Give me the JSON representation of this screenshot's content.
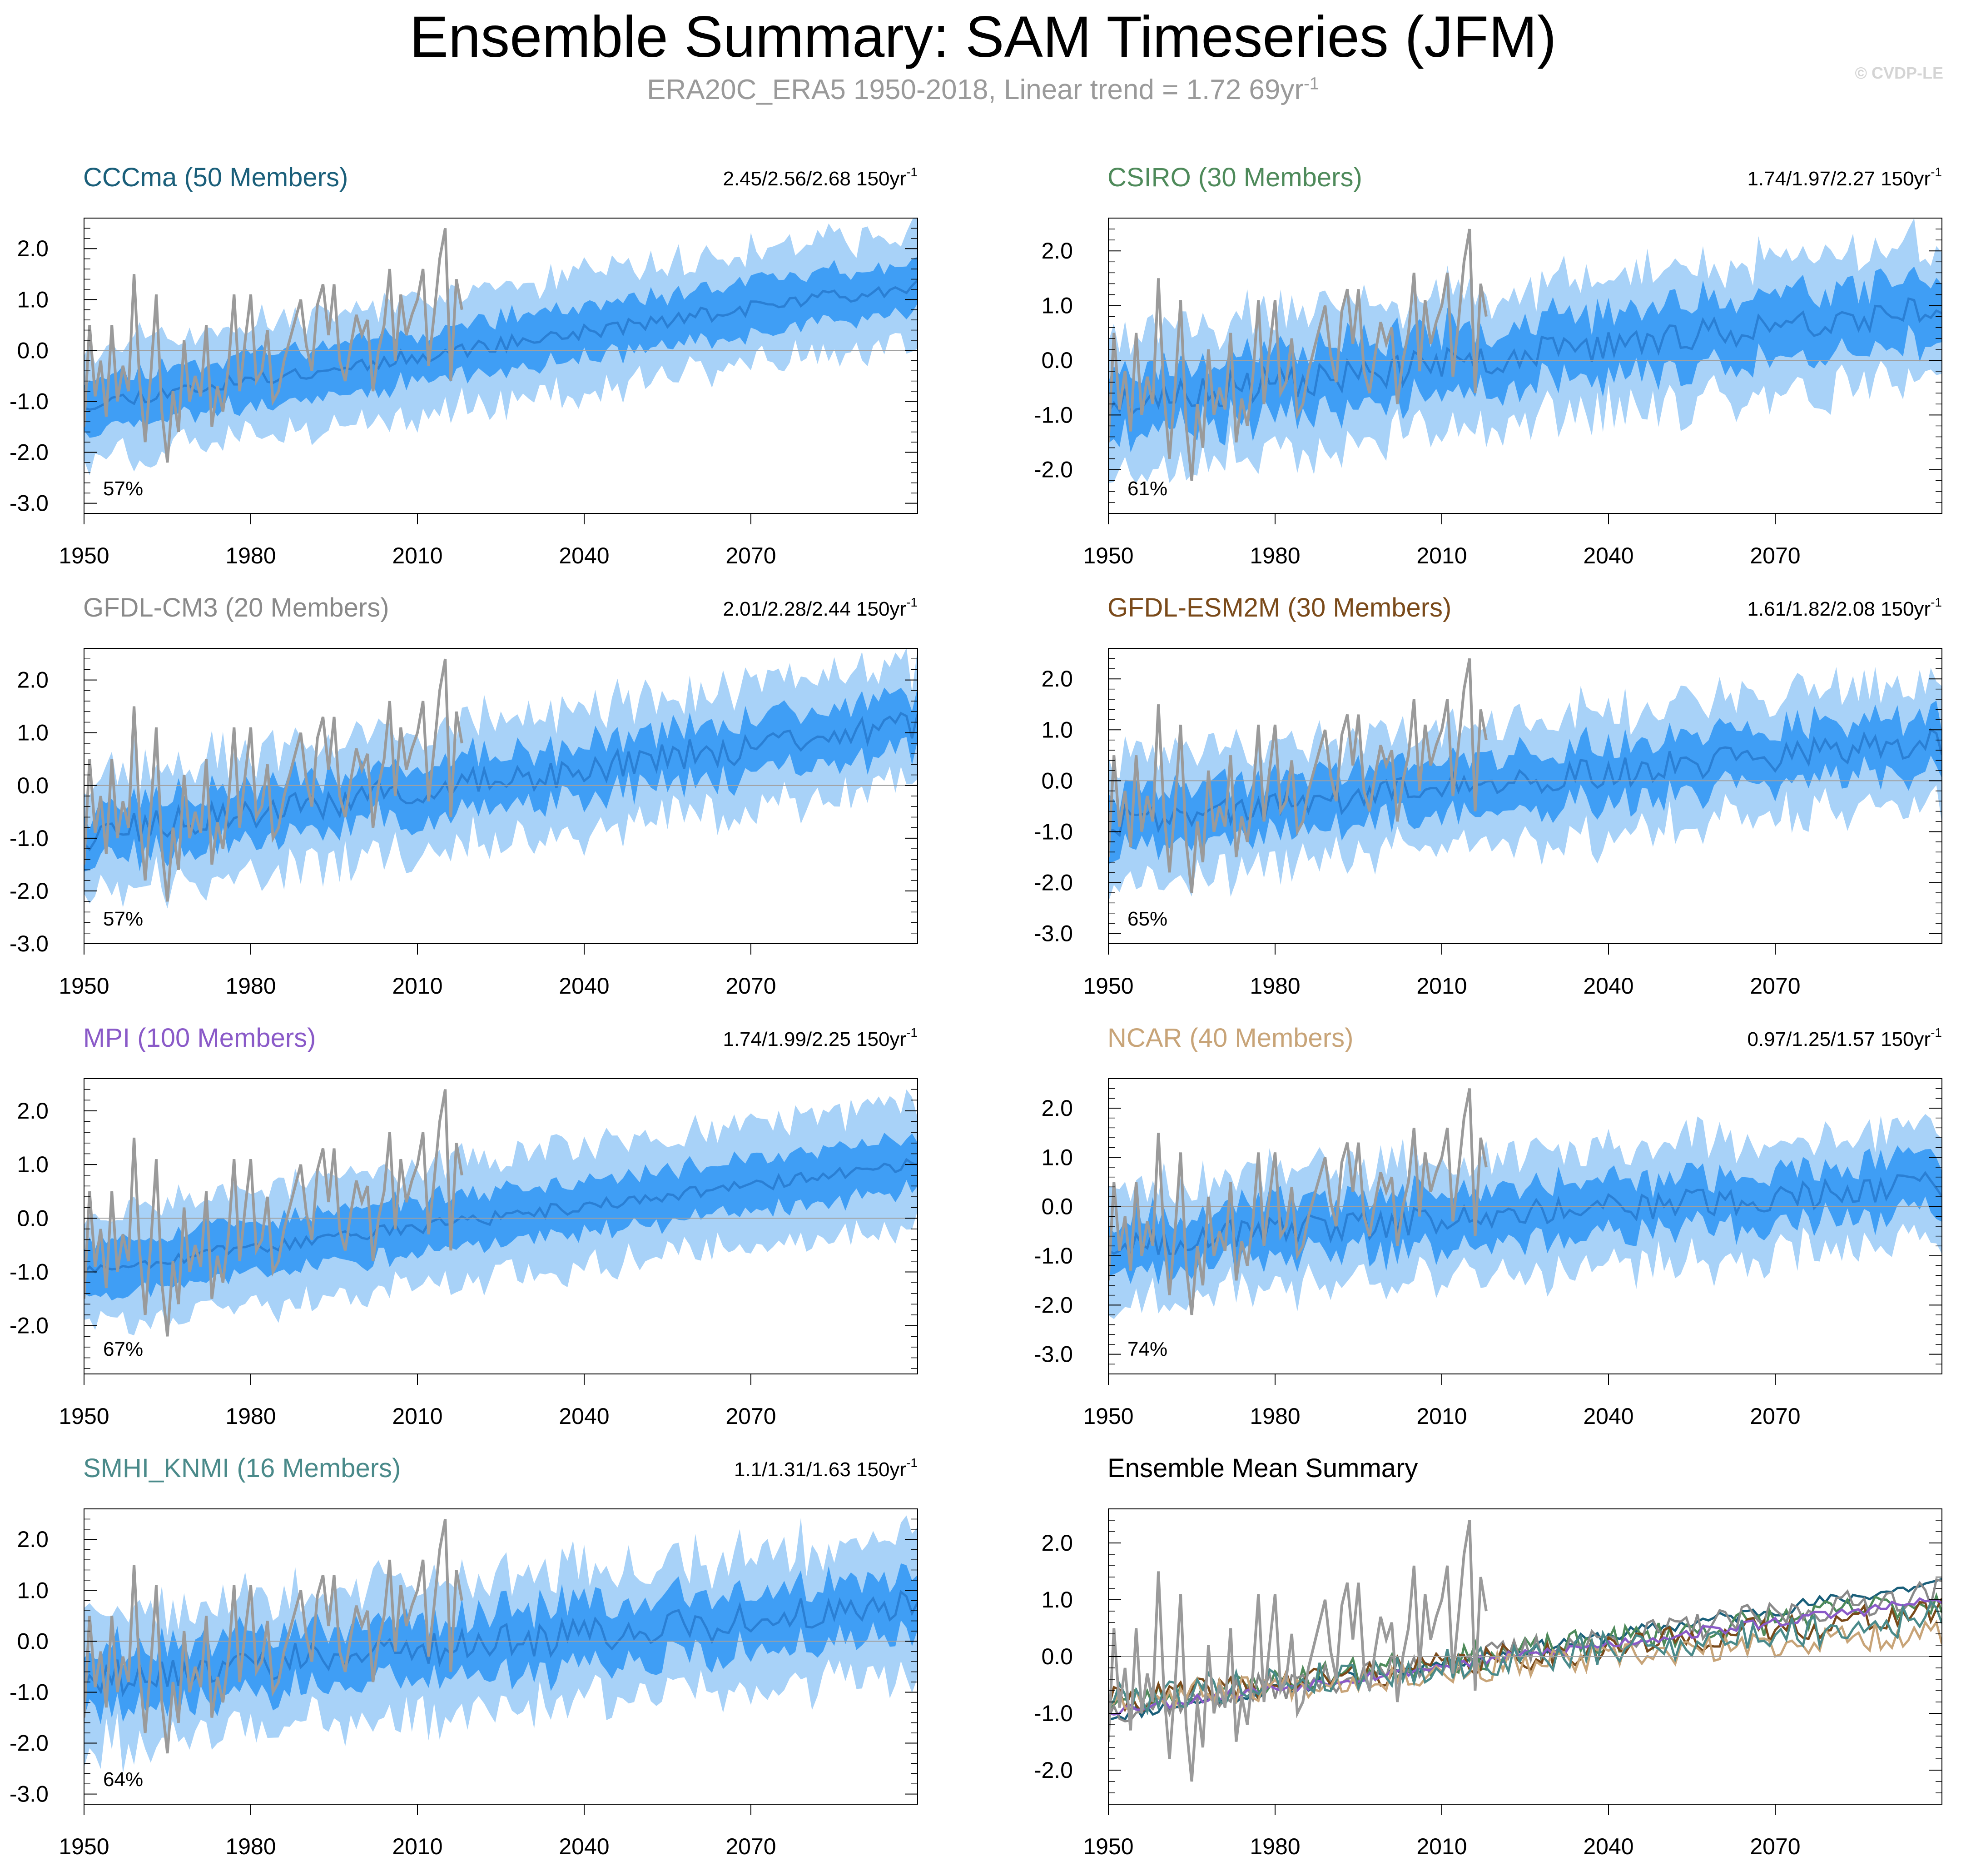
{
  "figure": {
    "title": "Ensemble Summary: SAM Timeseries (JFM)",
    "subtitle_main": "ERA20C_ERA5 1950-2018, Linear trend = 1.72 69yr",
    "subtitle_sup": "-1",
    "watermark": "© CVDP-LE",
    "trend_sup": "-1"
  },
  "chart_data": [
    {
      "type": "area",
      "title": "CCCma (50 Members)",
      "title_color": "#1a5f7a",
      "trend": "2.45/2.56/2.68 150yr",
      "percent": "57%",
      "ylim": [
        -3.2,
        2.6
      ],
      "yticks": [
        "2.0",
        "1.0",
        "0.0",
        "-1.0",
        "-2.0",
        "-3.0"
      ],
      "ytick_values": [
        2,
        1,
        0,
        -1,
        -2,
        -3
      ],
      "xlim": [
        1950,
        2100
      ],
      "xticks": [
        "1950",
        "1980",
        "2010",
        "2040",
        "2070"
      ],
      "xtick_values": [
        1950,
        1980,
        2010,
        2040,
        2070
      ],
      "mean_start": -1.05,
      "mean_end": 1.3,
      "inner_halfwidth": 0.5,
      "outer_halfwidth": 1.1,
      "noise": 0.15,
      "seed": 11
    },
    {
      "type": "area",
      "title": "CSIRO (30 Members)",
      "title_color": "#4e8a5a",
      "trend": "1.74/1.97/2.27 150yr",
      "percent": "61%",
      "ylim": [
        -2.8,
        2.6
      ],
      "yticks": [
        "2.0",
        "1.0",
        "0.0",
        "-1.0",
        "-2.0"
      ],
      "ytick_values": [
        2,
        1,
        0,
        -1,
        -2
      ],
      "xlim": [
        1950,
        2100
      ],
      "xticks": [
        "1950",
        "1980",
        "2010",
        "2040",
        "2070"
      ],
      "xtick_values": [
        1950,
        1980,
        2010,
        2040,
        2070
      ],
      "mean_start": -0.8,
      "mean_end": 1.0,
      "inner_halfwidth": 0.6,
      "outer_halfwidth": 1.25,
      "noise": 0.3,
      "seed": 23
    },
    {
      "type": "area",
      "title": "GFDL-CM3 (20 Members)",
      "title_color": "#8a8a8a",
      "trend": "2.01/2.28/2.44 150yr",
      "percent": "57%",
      "ylim": [
        -3.0,
        2.6
      ],
      "yticks": [
        "2.0",
        "1.0",
        "0.0",
        "-1.0",
        "-2.0",
        "-3.0"
      ],
      "ytick_values": [
        2,
        1,
        0,
        -1,
        -2,
        -3
      ],
      "xlim": [
        1950,
        2100
      ],
      "xticks": [
        "1950",
        "1980",
        "2010",
        "2040",
        "2070"
      ],
      "xtick_values": [
        1950,
        1980,
        2010,
        2040,
        2070
      ],
      "mean_start": -0.95,
      "mean_end": 1.15,
      "inner_halfwidth": 0.5,
      "outer_halfwidth": 1.15,
      "noise": 0.3,
      "seed": 37
    },
    {
      "type": "area",
      "title": "GFDL-ESM2M (30 Members)",
      "title_color": "#7a4a1a",
      "trend": "1.61/1.82/2.08 150yr",
      "percent": "65%",
      "ylim": [
        -3.2,
        2.6
      ],
      "yticks": [
        "2.0",
        "1.0",
        "0.0",
        "-1.0",
        "-2.0",
        "-3.0"
      ],
      "ytick_values": [
        2,
        1,
        0,
        -1,
        -2,
        -3
      ],
      "xlim": [
        1950,
        2100
      ],
      "xticks": [
        "1950",
        "1980",
        "2010",
        "2040",
        "2070"
      ],
      "xtick_values": [
        1950,
        1980,
        2010,
        2040,
        2070
      ],
      "mean_start": -0.8,
      "mean_end": 0.8,
      "inner_halfwidth": 0.55,
      "outer_halfwidth": 1.2,
      "noise": 0.3,
      "seed": 41
    },
    {
      "type": "area",
      "title": "MPI (100 Members)",
      "title_color": "#8a5ac8",
      "trend": "1.74/1.99/2.25 150yr",
      "percent": "67%",
      "ylim": [
        -2.9,
        2.6
      ],
      "yticks": [
        "2.0",
        "1.0",
        "0.0",
        "-1.0",
        "-2.0"
      ],
      "ytick_values": [
        2,
        1,
        0,
        -1,
        -2
      ],
      "xlim": [
        1950,
        2100
      ],
      "xticks": [
        "1950",
        "1980",
        "2010",
        "2040",
        "2070"
      ],
      "xtick_values": [
        1950,
        1980,
        2010,
        2040,
        2070
      ],
      "mean_start": -0.95,
      "mean_end": 1.0,
      "inner_halfwidth": 0.5,
      "outer_halfwidth": 1.1,
      "noise": 0.12,
      "seed": 53
    },
    {
      "type": "area",
      "title": "NCAR (40 Members)",
      "title_color": "#c8a478",
      "trend": "0.97/1.25/1.57 150yr",
      "percent": "74%",
      "ylim": [
        -3.4,
        2.6
      ],
      "yticks": [
        "2.0",
        "1.0",
        "0.0",
        "-1.0",
        "-2.0",
        "-3.0"
      ],
      "ytick_values": [
        2,
        1,
        0,
        -1,
        -2,
        -3
      ],
      "xlim": [
        1950,
        2100
      ],
      "xticks": [
        "1950",
        "1980",
        "2010",
        "2040",
        "2070"
      ],
      "xtick_values": [
        1950,
        1980,
        2010,
        2040,
        2070
      ],
      "mean_start": -0.75,
      "mean_end": 0.45,
      "inner_halfwidth": 0.55,
      "outer_halfwidth": 1.2,
      "noise": 0.3,
      "seed": 67
    },
    {
      "type": "area",
      "title": "SMHI_KNMI (16 Members)",
      "title_color": "#4a8a8a",
      "trend": "1.1/1.31/1.63 150yr",
      "percent": "64%",
      "ylim": [
        -3.2,
        2.6
      ],
      "yticks": [
        "2.0",
        "1.0",
        "0.0",
        "-1.0",
        "-2.0",
        "-3.0"
      ],
      "ytick_values": [
        2,
        1,
        0,
        -1,
        -2,
        -3
      ],
      "xlim": [
        1950,
        2100
      ],
      "xticks": [
        "1950",
        "1980",
        "2010",
        "2040",
        "2070"
      ],
      "xtick_values": [
        1950,
        1980,
        2010,
        2040,
        2070
      ],
      "mean_start": -0.75,
      "mean_end": 0.7,
      "inner_halfwidth": 0.6,
      "outer_halfwidth": 1.3,
      "noise": 0.35,
      "seed": 79
    },
    {
      "type": "line",
      "title": "Ensemble Mean Summary",
      "title_color": "#000000",
      "ylim": [
        -2.6,
        2.6
      ],
      "yticks": [
        "2.0",
        "1.0",
        "0.0",
        "-1.0",
        "-2.0"
      ],
      "ytick_values": [
        2,
        1,
        0,
        -1,
        -2
      ],
      "xlim": [
        1950,
        2100
      ],
      "xticks": [
        "1950",
        "1980",
        "2010",
        "2040",
        "2070"
      ],
      "xtick_values": [
        1950,
        1980,
        2010,
        2040,
        2070
      ],
      "series": [
        {
          "name": "CCCma",
          "color": "#1a5f7a",
          "start": -1.05,
          "end": 1.3,
          "noise": 0.12,
          "seed": 11
        },
        {
          "name": "CSIRO",
          "color": "#4e8a5a",
          "start": -0.8,
          "end": 1.0,
          "noise": 0.25,
          "seed": 23
        },
        {
          "name": "GFDL-CM3",
          "color": "#8a8a8a",
          "start": -0.95,
          "end": 1.15,
          "noise": 0.25,
          "seed": 37
        },
        {
          "name": "GFDL-ESM2M",
          "color": "#7a4a1a",
          "start": -0.8,
          "end": 0.8,
          "noise": 0.25,
          "seed": 41
        },
        {
          "name": "MPI",
          "color": "#8a5ac8",
          "start": -0.95,
          "end": 1.0,
          "noise": 0.1,
          "seed": 53
        },
        {
          "name": "NCAR",
          "color": "#c8a478",
          "start": -0.75,
          "end": 0.45,
          "noise": 0.25,
          "seed": 67
        },
        {
          "name": "SMHI_KNMI",
          "color": "#4a8a8a",
          "start": -0.75,
          "end": 0.7,
          "noise": 0.3,
          "seed": 79
        }
      ]
    }
  ],
  "observations": {
    "name": "ERA20C_ERA5",
    "color": "#9a9a9a",
    "start_year": 1950,
    "values": [
      -1.5,
      0.5,
      -0.9,
      -0.2,
      -1.3,
      0.5,
      -1.0,
      -0.3,
      -0.8,
      1.5,
      -0.6,
      -1.8,
      -0.5,
      1.1,
      -1.2,
      -2.2,
      -0.8,
      -1.6,
      0.2,
      -1.0,
      -0.5,
      -0.9,
      0.5,
      -1.5,
      -0.7,
      -1.2,
      -0.3,
      1.1,
      -0.8,
      0.2,
      1.1,
      -0.6,
      -0.4,
      0.4,
      -1.0,
      -0.8,
      -0.2,
      0.2,
      0.6,
      1.0,
      0.1,
      -0.4,
      0.9,
      1.3,
      0.3,
      1.3,
      -0.2,
      -0.6,
      0.1,
      0.7,
      0.3,
      0.6,
      -0.8,
      0.0,
      0.5,
      1.6,
      -0.2,
      1.1,
      0.3,
      0.7,
      1.0,
      1.6,
      -0.3,
      0.7,
      1.8,
      2.4,
      -0.6,
      1.4,
      0.8
    ]
  }
}
